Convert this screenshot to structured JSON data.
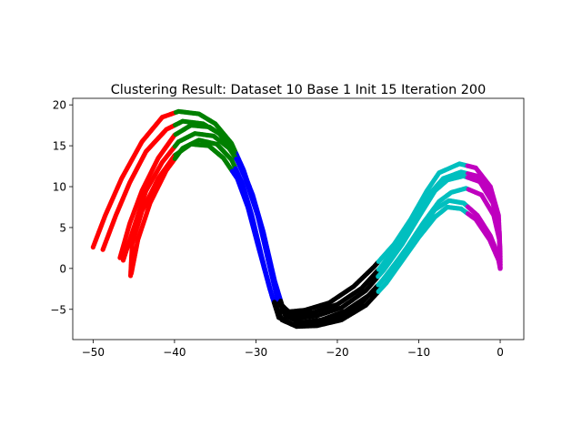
{
  "chart_data": {
    "type": "scatter",
    "title": "Clustering Result: Dataset 10 Base 1 Init 15 Iteration 200",
    "xlabel": "",
    "ylabel": "",
    "xlim": [
      -52.5,
      2.9
    ],
    "ylim": [
      -8.7,
      20.8
    ],
    "x_ticks": [
      -50,
      -40,
      -30,
      -20,
      -10,
      0
    ],
    "x_tick_labels": [
      "−50",
      "−40",
      "−30",
      "−20",
      "−10",
      "0"
    ],
    "y_ticks": [
      -5,
      0,
      5,
      10,
      15,
      20
    ],
    "y_tick_labels": [
      "−5",
      "0",
      "5",
      "10",
      "15",
      "20"
    ],
    "grid": false,
    "legend": "none",
    "cluster_colors": [
      "#ff0000",
      "#008000",
      "#0000ff",
      "#000000",
      "#00bfbf",
      "#bf00bf"
    ],
    "trajectories": [
      {
        "points": [
          [
            -50.0,
            2.6
          ],
          [
            -48.5,
            6.5
          ],
          [
            -46.5,
            11.0
          ],
          [
            -44.0,
            15.5
          ],
          [
            -41.5,
            18.5
          ],
          [
            -39.5,
            19.2
          ],
          [
            -37.0,
            18.9
          ],
          [
            -35.0,
            17.7
          ],
          [
            -33.0,
            15.3
          ],
          [
            -31.5,
            12.0
          ],
          [
            -30.0,
            7.5
          ],
          [
            -28.5,
            1.0
          ],
          [
            -27.3,
            -4.0
          ],
          [
            -26.0,
            -5.3
          ],
          [
            -24.0,
            -5.1
          ],
          [
            -21.0,
            -4.2
          ],
          [
            -18.0,
            -2.2
          ],
          [
            -15.5,
            0.2
          ],
          [
            -13.0,
            3.0
          ],
          [
            -11.0,
            6.0
          ],
          [
            -9.0,
            9.5
          ],
          [
            -7.5,
            11.7
          ],
          [
            -5.0,
            12.8
          ],
          [
            -3.0,
            12.3
          ],
          [
            -1.2,
            10.0
          ],
          [
            -0.2,
            6.5
          ],
          [
            0.0,
            2.0
          ],
          [
            0.0,
            0.0
          ]
        ]
      },
      {
        "points": [
          [
            -48.8,
            2.3
          ],
          [
            -47.2,
            6.5
          ],
          [
            -45.5,
            10.5
          ],
          [
            -43.5,
            14.3
          ],
          [
            -41.0,
            17.0
          ],
          [
            -39.0,
            18.0
          ],
          [
            -36.5,
            17.7
          ],
          [
            -34.5,
            16.5
          ],
          [
            -32.8,
            14.3
          ],
          [
            -31.3,
            11.0
          ],
          [
            -29.8,
            6.5
          ],
          [
            -28.3,
            0.5
          ],
          [
            -27.0,
            -4.5
          ],
          [
            -25.5,
            -5.6
          ],
          [
            -23.0,
            -5.4
          ],
          [
            -20.0,
            -4.4
          ],
          [
            -17.0,
            -2.4
          ],
          [
            -14.8,
            0.0
          ],
          [
            -12.5,
            3.0
          ],
          [
            -10.5,
            6.0
          ],
          [
            -8.5,
            9.3
          ],
          [
            -7.0,
            11.0
          ],
          [
            -4.8,
            11.8
          ],
          [
            -2.8,
            11.3
          ],
          [
            -1.0,
            9.0
          ],
          [
            -0.2,
            5.5
          ],
          [
            0.0,
            1.5
          ],
          [
            0.0,
            0.0
          ]
        ]
      },
      {
        "points": [
          [
            -46.7,
            1.3
          ],
          [
            -45.5,
            5.5
          ],
          [
            -44.0,
            9.5
          ],
          [
            -42.0,
            13.5
          ],
          [
            -40.0,
            16.3
          ],
          [
            -38.0,
            17.5
          ],
          [
            -35.7,
            17.3
          ],
          [
            -33.8,
            16.0
          ],
          [
            -32.3,
            13.5
          ],
          [
            -30.8,
            10.0
          ],
          [
            -29.5,
            5.5
          ],
          [
            -28.0,
            -0.5
          ],
          [
            -26.7,
            -5.3
          ],
          [
            -25.0,
            -6.1
          ],
          [
            -22.5,
            -5.8
          ],
          [
            -19.5,
            -4.8
          ],
          [
            -16.5,
            -2.7
          ],
          [
            -14.3,
            -0.2
          ],
          [
            -12.0,
            3.0
          ],
          [
            -10.0,
            6.3
          ],
          [
            -8.0,
            9.5
          ],
          [
            -6.5,
            10.8
          ],
          [
            -4.5,
            11.3
          ],
          [
            -2.5,
            10.6
          ],
          [
            -0.9,
            8.0
          ],
          [
            -0.1,
            4.5
          ],
          [
            0.0,
            1.0
          ],
          [
            0.0,
            0.0
          ]
        ]
      },
      {
        "points": [
          [
            -46.3,
            1.0
          ],
          [
            -45.0,
            5.0
          ],
          [
            -43.5,
            9.5
          ],
          [
            -41.5,
            13.0
          ],
          [
            -39.5,
            15.5
          ],
          [
            -37.5,
            16.5
          ],
          [
            -35.2,
            16.2
          ],
          [
            -33.3,
            14.7
          ],
          [
            -31.8,
            12.5
          ],
          [
            -30.4,
            9.0
          ],
          [
            -29.1,
            4.5
          ],
          [
            -27.7,
            -1.5
          ],
          [
            -26.4,
            -5.8
          ],
          [
            -24.5,
            -6.6
          ],
          [
            -22.0,
            -6.3
          ],
          [
            -19.0,
            -5.2
          ],
          [
            -16.0,
            -3.2
          ],
          [
            -13.8,
            -0.7
          ],
          [
            -11.5,
            2.5
          ],
          [
            -9.5,
            5.5
          ],
          [
            -7.5,
            8.2
          ],
          [
            -6.0,
            9.3
          ],
          [
            -4.2,
            9.8
          ],
          [
            -2.3,
            9.0
          ],
          [
            -0.8,
            6.5
          ],
          [
            -0.1,
            3.5
          ],
          [
            0.0,
            0.5
          ],
          [
            0.0,
            0.0
          ]
        ]
      },
      {
        "points": [
          [
            -45.4,
            -0.9
          ],
          [
            -45.2,
            3.0
          ],
          [
            -44.0,
            7.0
          ],
          [
            -42.0,
            11.0
          ],
          [
            -40.0,
            13.8
          ],
          [
            -38.0,
            15.2
          ],
          [
            -35.8,
            15.0
          ],
          [
            -34.0,
            13.5
          ],
          [
            -32.3,
            11.0
          ],
          [
            -31.0,
            7.5
          ],
          [
            -29.8,
            3.0
          ],
          [
            -28.3,
            -2.5
          ],
          [
            -27.2,
            -6.0
          ],
          [
            -25.5,
            -6.8
          ],
          [
            -23.0,
            -6.9
          ],
          [
            -20.0,
            -6.0
          ],
          [
            -17.0,
            -4.2
          ],
          [
            -14.5,
            -1.5
          ],
          [
            -12.2,
            1.5
          ],
          [
            -10.0,
            4.5
          ],
          [
            -8.0,
            7.2
          ],
          [
            -6.3,
            8.3
          ],
          [
            -4.5,
            8.0
          ],
          [
            -2.8,
            6.5
          ],
          [
            -1.2,
            4.0
          ],
          [
            -0.2,
            1.5
          ],
          [
            0.0,
            0.0
          ]
        ]
      },
      {
        "points": [
          [
            -45.3,
            -0.6
          ],
          [
            -44.5,
            3.5
          ],
          [
            -43.0,
            8.0
          ],
          [
            -41.0,
            12.0
          ],
          [
            -39.0,
            14.7
          ],
          [
            -37.0,
            15.7
          ],
          [
            -34.8,
            15.2
          ],
          [
            -33.0,
            13.3
          ],
          [
            -31.7,
            10.5
          ],
          [
            -30.5,
            6.5
          ],
          [
            -29.3,
            1.5
          ],
          [
            -28.0,
            -3.5
          ],
          [
            -26.8,
            -6.3
          ],
          [
            -25.0,
            -7.1
          ],
          [
            -22.5,
            -7.0
          ],
          [
            -19.5,
            -6.3
          ],
          [
            -16.5,
            -4.5
          ],
          [
            -14.0,
            -1.8
          ],
          [
            -12.0,
            1.0
          ],
          [
            -10.0,
            3.8
          ],
          [
            -8.0,
            6.3
          ],
          [
            -6.5,
            7.5
          ],
          [
            -4.8,
            7.3
          ],
          [
            -3.0,
            6.0
          ],
          [
            -1.3,
            3.5
          ],
          [
            -0.2,
            1.0
          ],
          [
            0.0,
            0.0
          ]
        ]
      }
    ]
  }
}
